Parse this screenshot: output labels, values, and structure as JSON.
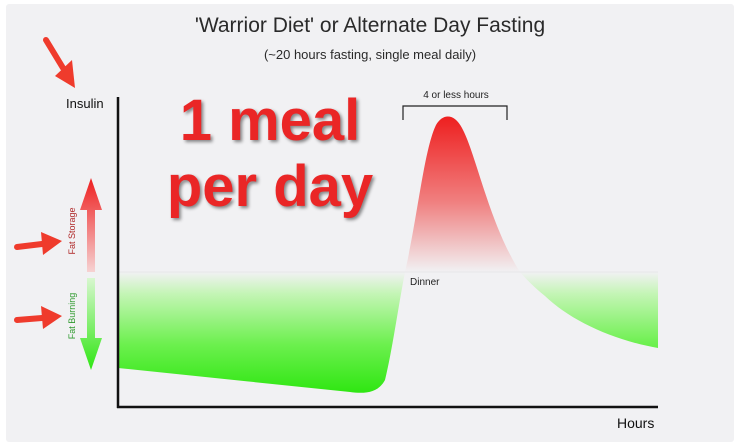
{
  "diagram": {
    "title": "'Warrior Diet' or Alternate Day Fasting",
    "subtitle": "(~20 hours fasting, single meal daily)",
    "y_axis_label": "Insulin",
    "x_axis_label": "Hours",
    "overlay_text": [
      "1 meal",
      "per day"
    ],
    "eating_window_label": "4 or less hours",
    "meal_label": "Dinner",
    "fat_storage_label": "Fat Storage",
    "fat_burning_label": "Fat Burning",
    "colors": {
      "storage_red": "#ee1f1f",
      "burning_green": "#2fe612",
      "overlay_red": "#ea2626",
      "arrow_red": "#ef3b2c"
    }
  }
}
